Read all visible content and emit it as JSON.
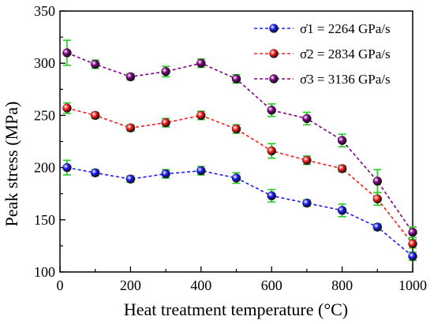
{
  "chart_data": {
    "type": "line",
    "xlabel": "Heat treatment temperature (°C)",
    "ylabel": "Peak stress (MPa)",
    "xlim": [
      0,
      1000
    ],
    "ylim": [
      100,
      350
    ],
    "xticks": [
      0,
      200,
      400,
      600,
      800,
      1000
    ],
    "yticks": [
      100,
      150,
      200,
      250,
      300,
      350
    ],
    "grid": false,
    "legend_position": "top-right",
    "x": [
      20,
      100,
      200,
      300,
      400,
      500,
      600,
      700,
      800,
      900,
      1000
    ],
    "series": [
      {
        "name": "σ̇1 = 2264 GPa/s",
        "color": "#1a1aff",
        "values": [
          200,
          195,
          189,
          194,
          197,
          190,
          173,
          166,
          159,
          143,
          115
        ],
        "errors": [
          7,
          3,
          3,
          4,
          4,
          5,
          6,
          3,
          6,
          3,
          4
        ]
      },
      {
        "name": "σ̇2 = 2834 GPa/s",
        "color": "#ff1a1a",
        "values": [
          257,
          250,
          238,
          243,
          250,
          237,
          216,
          207,
          199,
          170,
          127
        ],
        "errors": [
          5,
          3,
          3,
          4,
          4,
          4,
          7,
          4,
          3,
          6,
          4
        ]
      },
      {
        "name": "σ̇3 = 3136 GPa/s",
        "color": "#800080",
        "values": [
          310,
          299,
          287,
          292,
          300,
          285,
          255,
          247,
          226,
          187,
          138
        ],
        "errors": [
          12,
          4,
          3,
          5,
          4,
          4,
          6,
          6,
          6,
          11,
          5
        ]
      }
    ],
    "error_bar_color": "#22cc22"
  }
}
